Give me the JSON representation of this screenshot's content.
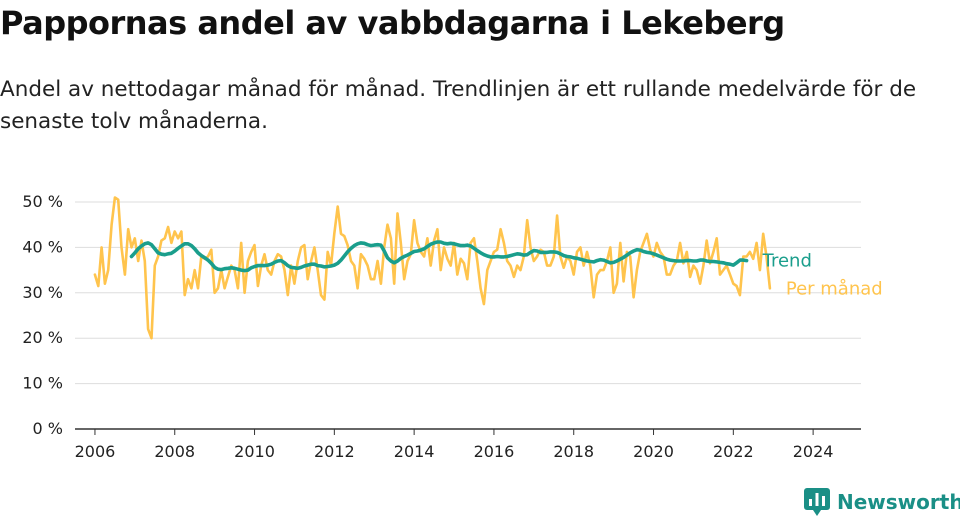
{
  "title": "Pappornas andel av vabbdagarna i Lekeberg",
  "subtitle": "Andel av nettodagar månad för månad. Trendlinjen är ett rullande medelvärde för de senaste tolv månaderna.",
  "brand": {
    "name": "Newsworthy",
    "icon": "newsworthy-logo-icon",
    "color": "#1a8f86"
  },
  "colors": {
    "monthly": "#ffc44d",
    "trend": "#1a9e8c",
    "axis": "#333333",
    "grid": "#dddddd"
  },
  "chart_data": {
    "type": "line",
    "title": "Pappornas andel av vabbdagarna i Lekeberg",
    "xlabel": "",
    "ylabel": "",
    "xlim": [
      2005.5,
      2025.2
    ],
    "ylim": [
      0,
      50
    ],
    "grid": "horizontal",
    "x_ticks": [
      2006,
      2008,
      2010,
      2012,
      2014,
      2016,
      2018,
      2020,
      2022,
      2024
    ],
    "x_tick_labels": [
      "2006",
      "2008",
      "2010",
      "2012",
      "2014",
      "2016",
      "2018",
      "2020",
      "2022",
      "2024"
    ],
    "y_ticks": [
      0,
      10,
      20,
      30,
      40,
      50
    ],
    "y_tick_labels": [
      "0 %",
      "10 %",
      "20 %",
      "30 %",
      "40 %",
      "50 %"
    ],
    "legend_placement": "right, at line ends",
    "series": [
      {
        "name": "Per månad",
        "x_start": 2006.0,
        "x_step": 0.08333,
        "values": [
          34,
          31.5,
          40,
          32,
          35,
          45,
          51,
          50.5,
          40,
          34,
          44,
          40,
          42,
          37,
          41.5,
          37,
          22,
          20,
          36,
          38,
          41.5,
          42,
          44.5,
          41,
          43.5,
          42,
          43.5,
          29.5,
          33,
          31,
          35,
          31,
          38,
          37.5,
          38,
          39.5,
          30,
          31,
          35,
          31,
          33.5,
          36,
          35,
          31,
          41,
          30,
          37,
          39,
          40.5,
          31.5,
          36,
          38.5,
          35,
          34,
          37,
          38.5,
          38,
          35,
          29.5,
          36,
          32,
          37,
          40,
          40.5,
          33,
          37,
          40,
          35,
          29.5,
          28.5,
          39,
          36,
          43,
          49,
          43,
          42.5,
          40.5,
          37,
          36,
          31,
          38.5,
          37.5,
          36,
          33,
          33,
          37,
          32,
          40,
          45,
          42,
          32,
          47.5,
          41,
          33,
          37,
          38.5,
          46,
          41,
          39,
          38,
          42,
          36,
          41.5,
          44,
          35,
          40,
          37.5,
          36,
          41,
          34,
          37.5,
          36.5,
          33,
          41,
          42,
          37,
          31,
          27.5,
          35,
          37,
          39,
          39.5,
          44,
          41,
          37,
          36,
          33.5,
          36,
          35,
          38,
          46,
          40,
          37,
          38,
          39.5,
          39,
          36,
          36,
          38,
          47,
          38,
          35.5,
          38,
          37,
          34,
          39,
          40,
          36,
          39,
          36,
          29,
          34,
          35,
          35,
          37,
          40,
          30,
          32,
          41,
          32.5,
          39,
          38,
          29,
          35,
          39,
          41,
          43,
          39.5,
          38,
          41,
          39,
          38,
          34,
          34,
          36,
          37,
          41,
          36.5,
          39,
          33.5,
          36,
          35,
          32,
          36,
          41.5,
          36.5,
          39,
          42,
          34,
          35,
          36,
          34,
          32,
          31.5,
          29.5,
          38,
          38,
          39,
          37.5,
          41,
          35,
          43,
          38,
          31
        ]
      },
      {
        "name": "Trend",
        "x_start": 2006.917,
        "x_step": 0.08333,
        "values": [
          38,
          38.8,
          39.7,
          40.3,
          40.8,
          41,
          40.6,
          39.7,
          38.8,
          38.5,
          38.4,
          38.6,
          38.7,
          39.2,
          39.8,
          40.3,
          40.8,
          40.8,
          40.4,
          39.7,
          38.8,
          38.2,
          37.7,
          37.2,
          36.5,
          35.6,
          35.2,
          35.1,
          35.3,
          35.4,
          35.5,
          35.4,
          35.2,
          35,
          34.9,
          35,
          35.5,
          35.8,
          36,
          36,
          36,
          36.1,
          36.3,
          36.7,
          37,
          37.1,
          36.6,
          36,
          35.6,
          35.5,
          35.4,
          35.6,
          35.9,
          36.1,
          36.3,
          36.3,
          36,
          35.9,
          35.7,
          35.8,
          35.9,
          36.1,
          36.5,
          37.2,
          38.1,
          39,
          39.8,
          40.4,
          40.8,
          41,
          40.9,
          40.6,
          40.4,
          40.5,
          40.6,
          40.5,
          39.2,
          37.7,
          37,
          36.6,
          37,
          37.6,
          38,
          38.3,
          38.7,
          39.1,
          39.2,
          39.4,
          39.7,
          40.2,
          40.7,
          41,
          41.2,
          41.2,
          40.9,
          40.8,
          40.9,
          40.8,
          40.6,
          40.4,
          40.4,
          40.5,
          40.3,
          39.8,
          39.3,
          38.8,
          38.4,
          38.1,
          37.9,
          37.9,
          38,
          37.9,
          37.9,
          38,
          38.2,
          38.4,
          38.6,
          38.5,
          38.3,
          38.4,
          38.9,
          39.3,
          39.2,
          38.9,
          38.9,
          38.9,
          39,
          39,
          38.9,
          38.6,
          38.2,
          38,
          37.9,
          37.7,
          37.6,
          37.4,
          37.2,
          37,
          36.9,
          36.8,
          37.1,
          37.3,
          37.2,
          36.9,
          36.6,
          36.7,
          37,
          37.4,
          37.8,
          38.3,
          38.8,
          39.2,
          39.5,
          39.4,
          39.1,
          38.9,
          38.8,
          38.6,
          38.3,
          38,
          37.7,
          37.4,
          37.2,
          37.1,
          37,
          37,
          37,
          37.1,
          37.1,
          37,
          37,
          37.2,
          37.2,
          37,
          36.9,
          36.9,
          36.8,
          36.7,
          36.6,
          36.4,
          36.3,
          36.1,
          36.6,
          37.2,
          37.2,
          37.1
        ]
      }
    ]
  }
}
